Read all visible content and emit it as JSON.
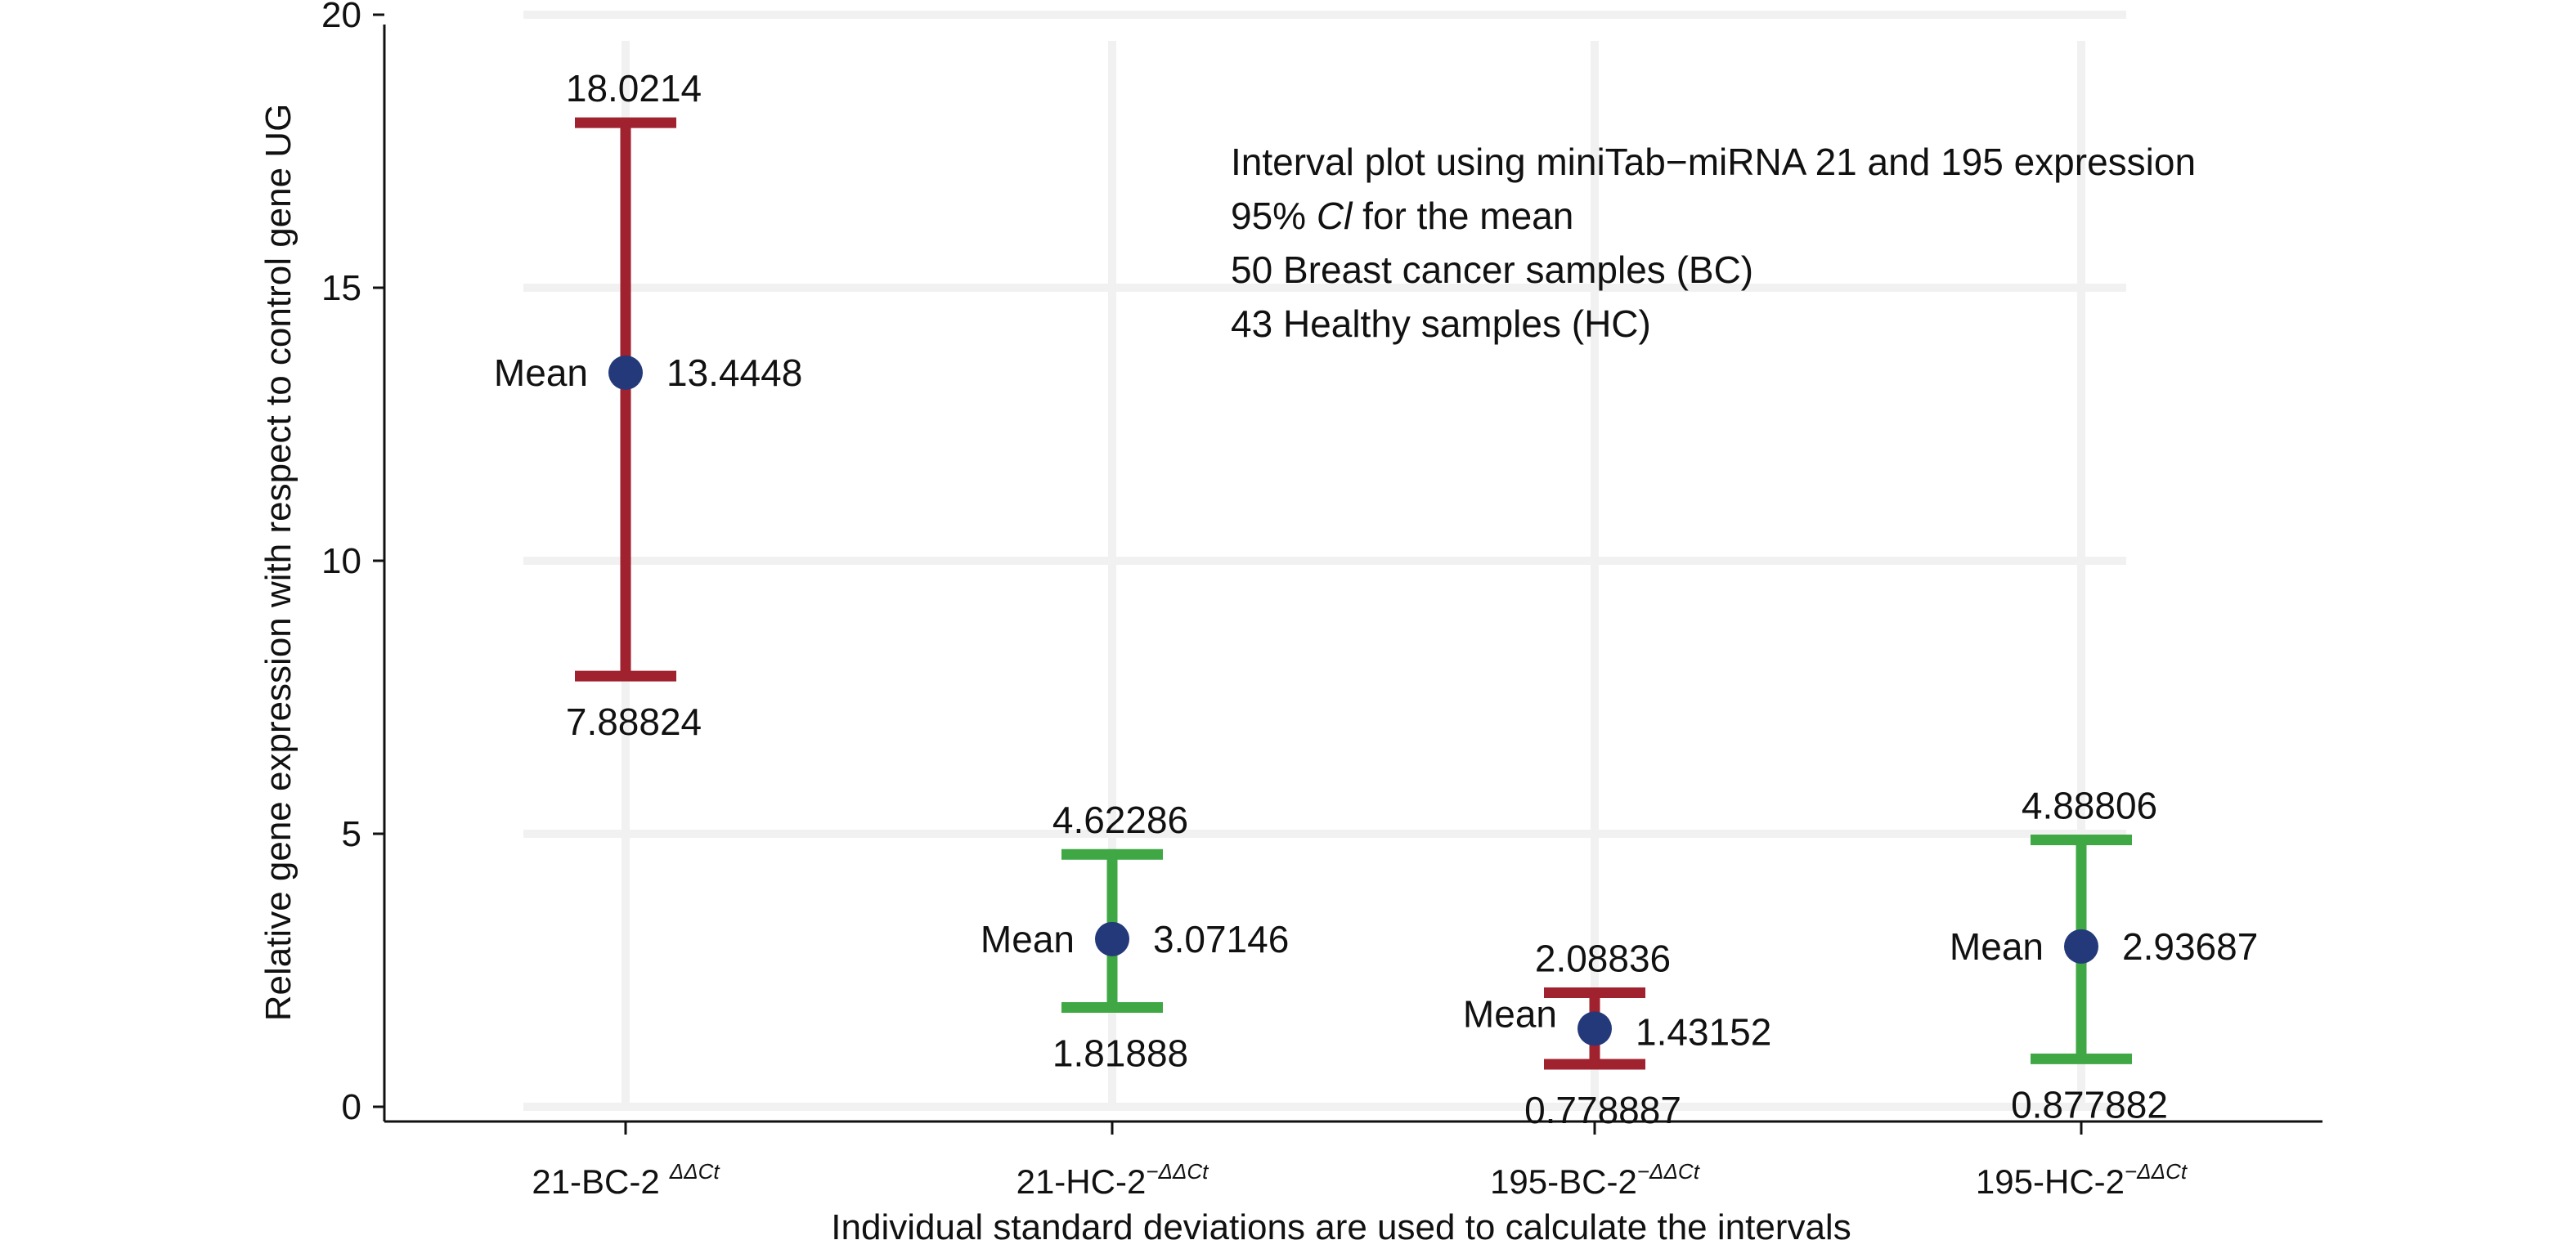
{
  "chart_data": {
    "type": "interval",
    "categories": [
      {
        "base": "21-BC-2",
        "sup": "ΔΔCt"
      },
      {
        "base": "21-HC-2",
        "sup": "−ΔΔCt"
      },
      {
        "base": "195-BC-2",
        "sup": "−ΔΔCt"
      },
      {
        "base": "195-HC-2",
        "sup": "−ΔΔCt"
      }
    ],
    "intervals": [
      {
        "lower": 7.88824,
        "mean": 13.4448,
        "upper": 18.0214,
        "lower_label": "7.88824",
        "mean_label": "13.4448",
        "upper_label": "18.0214",
        "color": "#a0222e"
      },
      {
        "lower": 1.81888,
        "mean": 3.07146,
        "upper": 4.62286,
        "lower_label": "1.81888",
        "mean_label": "3.07146",
        "upper_label": "4.62286",
        "color": "#3fa845"
      },
      {
        "lower": 0.778887,
        "mean": 1.43152,
        "upper": 2.08836,
        "lower_label": "0.778887",
        "mean_label": "1.43152",
        "upper_label": "2.08836",
        "color": "#a0222e"
      },
      {
        "lower": 0.877882,
        "mean": 2.93687,
        "upper": 4.88806,
        "lower_label": "0.877882",
        "mean_label": "2.93687",
        "upper_label": "4.88806",
        "color": "#3fa845"
      }
    ],
    "mean_word": "Mean",
    "mean_color": "#23397a",
    "ylim": [
      0,
      20
    ],
    "yticks": [
      0,
      5,
      10,
      15,
      20
    ],
    "ylabel": "Relative gene expression with respect  to control gene UG",
    "xlabel": "Individual standard deviations are used to calculate the intervals",
    "annotation": [
      [
        {
          "t": "Interval plot using miniTab−miRNA 21 and 195 expression"
        }
      ],
      [
        {
          "t": "95% "
        },
        {
          "t": "Cl",
          "i": true
        },
        {
          "t": " for the mean"
        }
      ],
      [
        {
          "t": "50 Breast cancer samples (BC)"
        }
      ],
      [
        {
          "t": "43 Healthy samples (HC)"
        }
      ]
    ],
    "grid": true,
    "legend": "none"
  }
}
